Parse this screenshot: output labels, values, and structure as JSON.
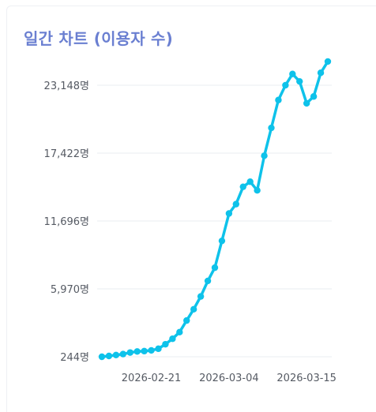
{
  "title": "일간 차트 (이용자 수)",
  "colors": {
    "title": "#6a7fd1",
    "line": "#0ec2ea",
    "grid": "#e9ecf0",
    "tick_text": "#555a63"
  },
  "chart_data": {
    "type": "line",
    "title": "일간 차트 (이용자 수)",
    "xlabel": "",
    "ylabel": "",
    "x": [
      "2026-02-14",
      "2026-02-15",
      "2026-02-16",
      "2026-02-17",
      "2026-02-18",
      "2026-02-19",
      "2026-02-20",
      "2026-02-21",
      "2026-02-22",
      "2026-02-23",
      "2026-02-24",
      "2026-02-25",
      "2026-02-26",
      "2026-02-27",
      "2026-02-28",
      "2026-03-01",
      "2026-03-02",
      "2026-03-03",
      "2026-03-04",
      "2026-03-05",
      "2026-03-06",
      "2026-03-07",
      "2026-03-08",
      "2026-03-09",
      "2026-03-10",
      "2026-03-11",
      "2026-03-12",
      "2026-03-13",
      "2026-03-14",
      "2026-03-15",
      "2026-03-16",
      "2026-03-17",
      "2026-03-18"
    ],
    "series": [
      {
        "name": "",
        "values": [
          244,
          310,
          390,
          470,
          600,
          690,
          720,
          780,
          920,
          1300,
          1760,
          2320,
          3300,
          4250,
          5330,
          6640,
          7760,
          10020,
          12330,
          13120,
          14580,
          15010,
          14280,
          17200,
          19550,
          21900,
          23150,
          24100,
          23470,
          21620,
          22200,
          24200,
          25150
        ]
      }
    ],
    "ylim": [
      244,
      23148
    ],
    "yticks": [
      244,
      5970,
      11696,
      17422,
      23148
    ],
    "ytick_labels": [
      "244명",
      "5,970명",
      "11,696명",
      "17,422명",
      "23,148명"
    ],
    "xticks": [
      "2026-02-21",
      "2026-03-04",
      "2026-03-15"
    ],
    "grid": true,
    "legend": "none"
  }
}
